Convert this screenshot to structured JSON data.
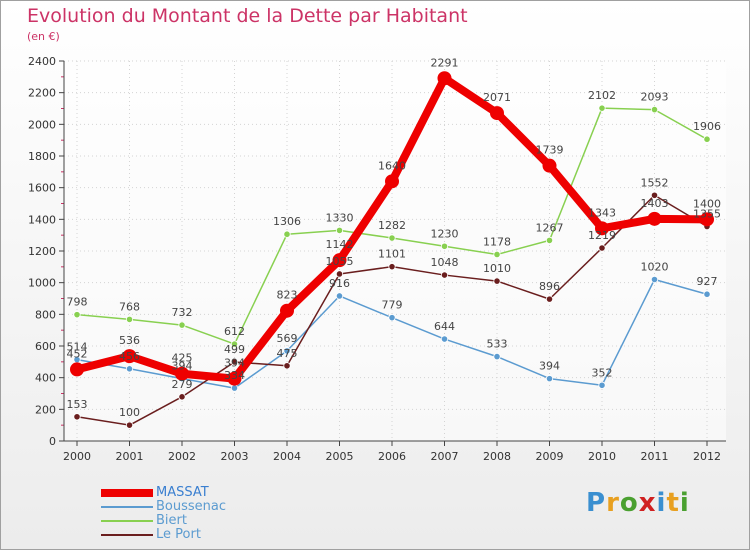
{
  "title": "Evolution du Montant de la Dette par Habitant",
  "subtitle": "(en €)",
  "logo": {
    "letters": [
      {
        "ch": "P",
        "color": "#3a8fd0"
      },
      {
        "ch": "r",
        "color": "#e8a020"
      },
      {
        "ch": "o",
        "color": "#4aa030"
      },
      {
        "ch": "x",
        "color": "#d02020"
      },
      {
        "ch": "i",
        "color": "#3a8fd0"
      },
      {
        "ch": "t",
        "color": "#e8a020"
      },
      {
        "ch": "i",
        "color": "#4aa030"
      }
    ]
  },
  "chart_data": {
    "type": "line",
    "title": "Evolution du Montant de la Dette par Habitant",
    "subtitle": "(en €)",
    "x": [
      "2000",
      "2001",
      "2002",
      "2003",
      "2004",
      "2005",
      "2006",
      "2007",
      "2008",
      "2009",
      "2010",
      "2011",
      "2012"
    ],
    "yticks": [
      "0",
      "200",
      "400",
      "600",
      "800",
      "1000",
      "1200",
      "1400",
      "1600",
      "1800",
      "2000",
      "2200",
      "2400"
    ],
    "ylim": [
      0,
      2400
    ],
    "grid": true,
    "legend_position": "bottom-left",
    "series": [
      {
        "name": "MASSAT",
        "color": "#ee0000",
        "emphasis": true,
        "values": [
          452,
          536,
          425,
          394,
          823,
          1142,
          1640,
          2291,
          2071,
          1739,
          1343,
          1403,
          1400
        ],
        "labels": [
          "452",
          "536",
          "425",
          "394",
          "823",
          "1142",
          "1640",
          "2291",
          "2071",
          "1739",
          "1343",
          "1403",
          "1400"
        ]
      },
      {
        "name": "Boussenac",
        "color": "#5b9bd0",
        "emphasis": false,
        "values": [
          514,
          456,
          394,
          334,
          569,
          916,
          779,
          644,
          533,
          394,
          352,
          1020,
          927
        ],
        "labels": [
          "514",
          "456",
          "394",
          "334",
          "569",
          "916",
          "779",
          "644",
          "533",
          "394",
          "352",
          "1020",
          "927"
        ]
      },
      {
        "name": "Biert",
        "color": "#88d050",
        "emphasis": false,
        "values": [
          798,
          768,
          732,
          612,
          1306,
          1330,
          1282,
          1230,
          1178,
          1267,
          2102,
          2093,
          1906
        ],
        "labels": [
          "798",
          "768",
          "732",
          "612",
          "1306",
          "1330",
          "1282",
          "1230",
          "1178",
          "1267",
          "2102",
          "2093",
          "1906"
        ]
      },
      {
        "name": "Le Port",
        "color": "#6a1e1e",
        "emphasis": false,
        "values": [
          153,
          100,
          279,
          499,
          475,
          1055,
          1101,
          1048,
          1010,
          896,
          1219,
          1552,
          1355
        ],
        "labels": [
          "153",
          "100",
          "279",
          "499",
          "475",
          "1055",
          "1101",
          "1048",
          "1010",
          "896",
          "1219",
          "1552",
          "1355"
        ]
      }
    ]
  }
}
